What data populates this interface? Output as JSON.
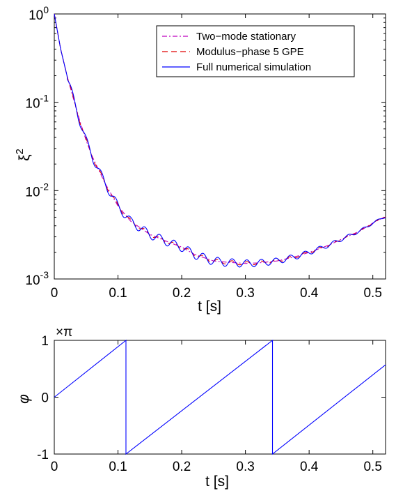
{
  "chart_data": [
    {
      "type": "line",
      "xlabel": "t [s]",
      "ylabel": "ξ",
      "ylabel_sup": "2",
      "xlim": [
        0,
        0.52
      ],
      "ylim": [
        0.001,
        1
      ],
      "yscale": "log",
      "xticks": [
        "0",
        "0.1",
        "0.2",
        "0.3",
        "0.4",
        "0.5"
      ],
      "yticks": [
        {
          "base": "10",
          "exp": "0"
        },
        {
          "base": "10",
          "exp": "-1"
        },
        {
          "base": "10",
          "exp": "-2"
        },
        {
          "base": "10",
          "exp": "-3"
        }
      ],
      "legend_position": "top-right",
      "legend": [
        {
          "label": "Two−mode stationary",
          "color": "#bf00bf",
          "style": "dash-dot"
        },
        {
          "label": "Modulus−phase 5 GPE",
          "color": "#e00000",
          "style": "dashed"
        },
        {
          "label": "Full numerical simulation",
          "color": "#0000ff",
          "style": "solid"
        }
      ],
      "smooth_curve": {
        "x": [
          0,
          0.01,
          0.02,
          0.03,
          0.04,
          0.05,
          0.06,
          0.08,
          0.1,
          0.12,
          0.15,
          0.18,
          0.2,
          0.22,
          0.25,
          0.27,
          0.3,
          0.32,
          0.35,
          0.38,
          0.4,
          0.43,
          0.45,
          0.48,
          0.5,
          0.52
        ],
        "y": [
          1.0,
          0.4,
          0.2,
          0.11,
          0.062,
          0.037,
          0.024,
          0.012,
          0.0067,
          0.0045,
          0.0032,
          0.0026,
          0.0023,
          0.0019,
          0.0016,
          0.00155,
          0.0015,
          0.00152,
          0.0016,
          0.0018,
          0.002,
          0.0024,
          0.0028,
          0.0035,
          0.0043,
          0.0051
        ]
      },
      "oscillation": {
        "period": 0.0228,
        "amplitude": 0.11,
        "decay_start": 0.26
      }
    },
    {
      "type": "line",
      "xlabel": "t [s]",
      "ylabel": "φ",
      "yunit": "×π",
      "xlim": [
        0,
        0.52
      ],
      "ylim": [
        -1,
        1
      ],
      "xticks": [
        "0",
        "0.1",
        "0.2",
        "0.3",
        "0.4",
        "0.5"
      ],
      "yticks": [
        "1",
        "0",
        "-1"
      ],
      "series": [
        {
          "color": "#0000ff",
          "x": [
            0,
            0.1125,
            0.1125,
            0.3425,
            0.3425,
            0.52
          ],
          "y": [
            0,
            1,
            -1,
            1,
            -1,
            0.57
          ]
        }
      ]
    }
  ]
}
